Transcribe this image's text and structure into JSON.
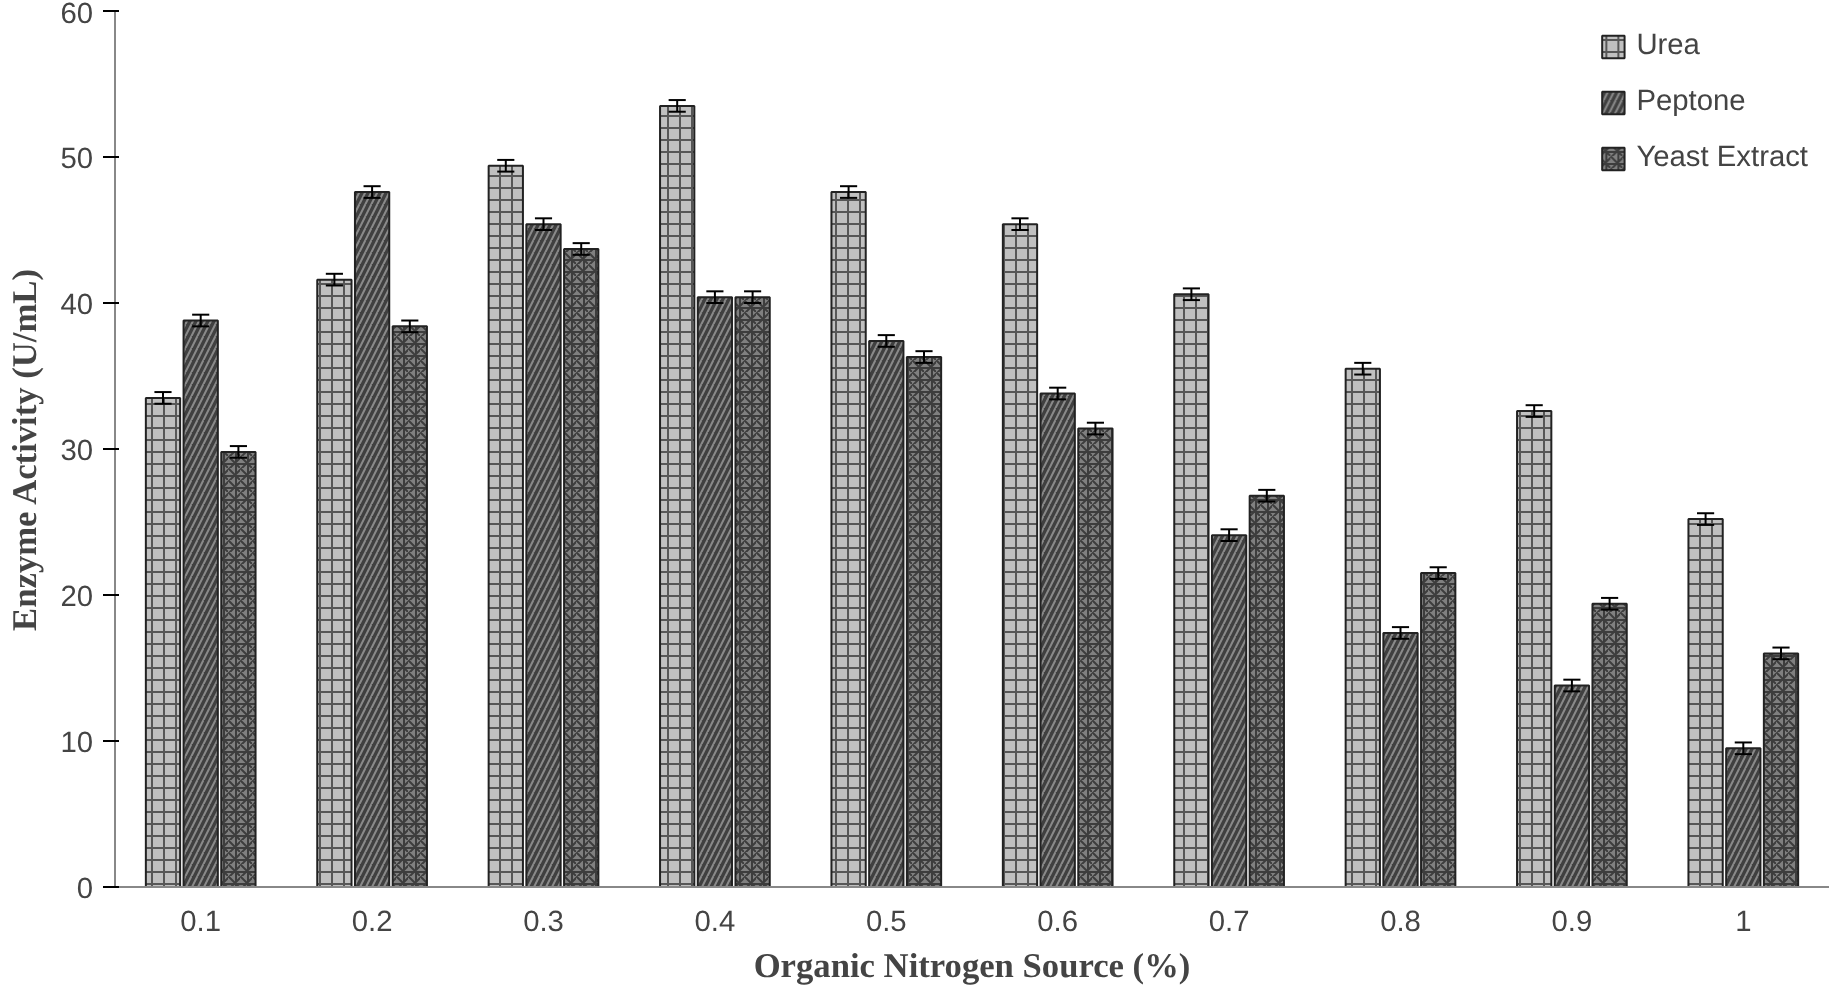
{
  "chart_data": {
    "type": "bar",
    "xlabel": "Organic Nitrogen Source (%)",
    "ylabel": "Enzyme Activity (U/mL)",
    "categories": [
      "0.1",
      "0.2",
      "0.3",
      "0.4",
      "0.5",
      "0.6",
      "0.7",
      "0.8",
      "0.9",
      "1"
    ],
    "series": [
      {
        "name": "Urea",
        "color": "#c0c0c0",
        "values": [
          33.5,
          41.6,
          49.4,
          53.5,
          47.6,
          45.4,
          40.6,
          35.5,
          32.6,
          25.2
        ],
        "errors": [
          0.4,
          0.4,
          0.4,
          0.4,
          0.4,
          0.4,
          0.4,
          0.4,
          0.4,
          0.4
        ]
      },
      {
        "name": "Peptone",
        "color": "#404040",
        "values": [
          38.8,
          47.6,
          45.4,
          40.4,
          37.4,
          33.8,
          24.1,
          17.4,
          13.8,
          9.5
        ],
        "errors": [
          0.4,
          0.4,
          0.4,
          0.4,
          0.4,
          0.4,
          0.4,
          0.4,
          0.4,
          0.4
        ]
      },
      {
        "name": "Yeast Extract",
        "color": "#808080",
        "values": [
          29.8,
          38.4,
          43.7,
          40.4,
          36.3,
          31.4,
          26.8,
          21.5,
          19.4,
          16.0
        ],
        "errors": [
          0.4,
          0.4,
          0.4,
          0.4,
          0.4,
          0.4,
          0.4,
          0.4,
          0.4,
          0.4
        ]
      }
    ],
    "ylim": [
      0,
      60
    ],
    "yticks": [
      0,
      10,
      20,
      30,
      40,
      50,
      60
    ],
    "grid": false,
    "legend": "top right"
  }
}
